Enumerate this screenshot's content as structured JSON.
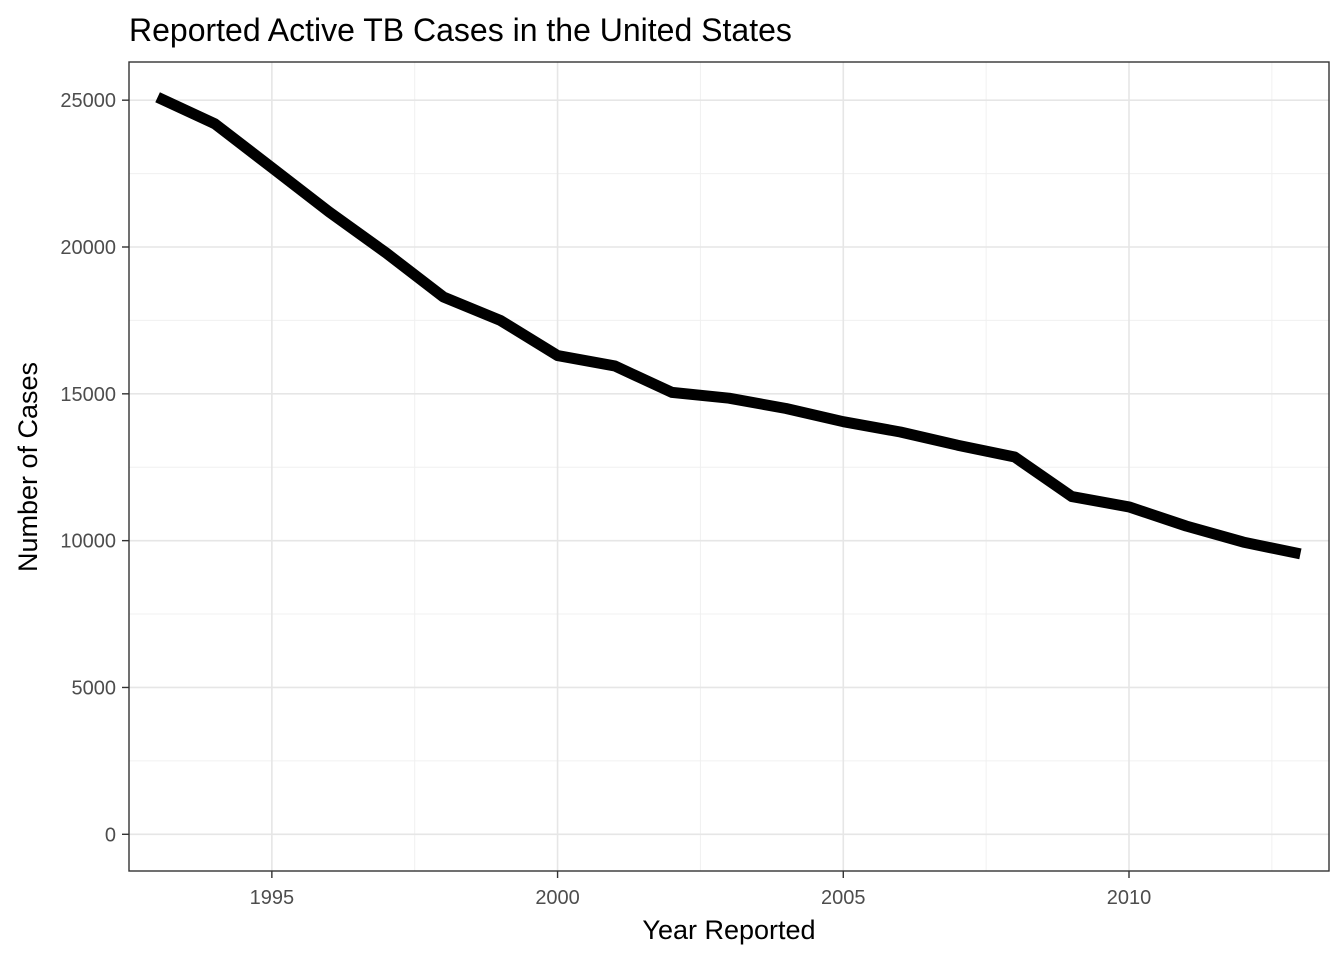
{
  "chart_data": {
    "type": "line",
    "title": "Reported Active TB Cases in the United States",
    "xlabel": "Year Reported",
    "ylabel": "Number of Cases",
    "xlim": [
      1992.5,
      2013.5
    ],
    "ylim": [
      -1250,
      26300
    ],
    "x_ticks": [
      1995,
      2000,
      2005,
      2010
    ],
    "y_ticks": [
      0,
      5000,
      10000,
      15000,
      20000,
      25000
    ],
    "grid": true,
    "legend": "none",
    "line_color": "#000000",
    "series": [
      {
        "x": [
          1993,
          1994,
          1995,
          1996,
          1997,
          1998,
          1999,
          2000,
          2001,
          2002,
          2003,
          2004,
          2005,
          2006,
          2007,
          2008,
          2009,
          2010,
          2011,
          2012,
          2013
        ],
        "values": [
          25100,
          24200,
          22700,
          21200,
          19800,
          18300,
          17500,
          16300,
          15950,
          15050,
          14850,
          14500,
          14050,
          13700,
          13250,
          12850,
          11500,
          11150,
          10500,
          9950,
          9550
        ]
      }
    ]
  }
}
